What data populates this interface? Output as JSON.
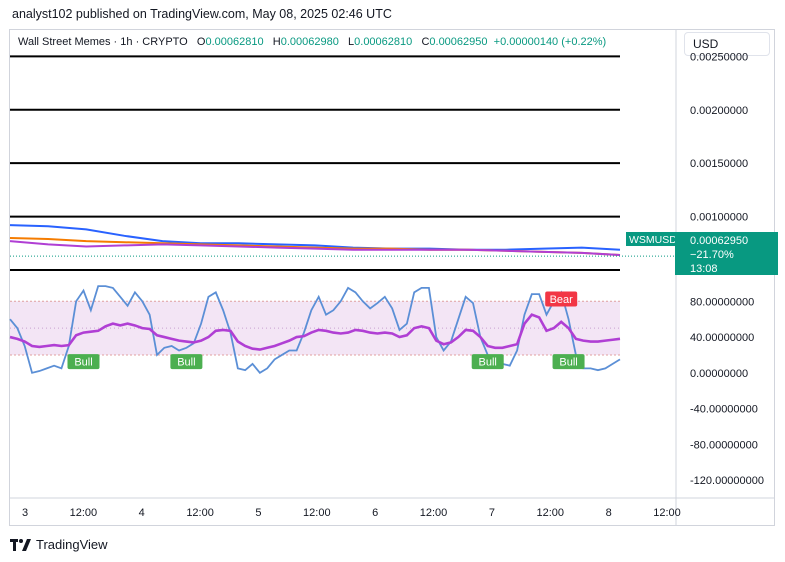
{
  "header": {
    "published_line": "analyst102 published on TradingView.com, May 08, 2025 02:46 UTC"
  },
  "legend": {
    "symbol": "Wall Street Memes · 1h · CRYPTO",
    "o_label": "O",
    "o_value": "0.00062810",
    "h_label": "H",
    "h_value": "0.00062980",
    "l_label": "L",
    "l_value": "0.00062810",
    "c_label": "C",
    "c_value": "0.00062950",
    "change": "+0.00000140 (+0.22%)"
  },
  "currency_button": "USD",
  "price_tag": {
    "symbol": "WSMUSD",
    "price": "0.00062950",
    "change_pct": "−21.70%",
    "countdown": "13:08"
  },
  "footer": {
    "brand": "TradingView"
  },
  "colors": {
    "green": "#089981",
    "price_tag_bg": "#089981",
    "stoch_k": "#2962ff",
    "stoch_d": "#b03fd4",
    "rsi_band": "#f3e5f5",
    "bull": "#4caf50",
    "bear": "#f23645"
  },
  "chart_data": [
    {
      "type": "line",
      "panel": "price",
      "ylim": [
        0.0005,
        0.0027
      ],
      "y_ticks": [
        "0.00250000",
        "0.00200000",
        "0.00150000",
        "0.00100000"
      ],
      "y_tick_values": [
        0.0025,
        0.002,
        0.0015,
        0.001
      ],
      "horizontal_levels": [
        0.0025,
        0.002,
        0.0015,
        0.001,
        0.0005
      ],
      "x_ticks": [
        "3",
        "12:00",
        "4",
        "12:00",
        "5",
        "12:00",
        "6",
        "12:00",
        "7",
        "12:00",
        "8",
        "12:00"
      ],
      "series": [
        {
          "values": [
            0.00092,
            0.00091,
            0.00088,
            0.00082,
            0.00077,
            0.00075,
            0.00075,
            0.00074,
            0.00073,
            0.00071,
            0.0007,
            0.0007,
            0.00069,
            0.00069,
            0.0007,
            0.00071,
            0.00069
          ]
        },
        {
          "values": [
            0.0008,
            0.00079,
            0.00077,
            0.00076,
            0.00075,
            0.00074,
            0.00073,
            0.00072,
            0.00071,
            0.0007,
            0.0007,
            0.00069,
            0.00069,
            0.00068,
            0.00067,
            0.00066,
            0.00064
          ]
        },
        {
          "values": [
            0.00077,
            0.00074,
            0.00072,
            0.00073,
            0.00074,
            0.00073,
            0.00072,
            0.00071,
            0.0007,
            0.00069,
            0.00069,
            0.00069,
            0.00069,
            0.00068,
            0.00067,
            0.00066,
            0.00064
          ]
        }
      ],
      "last_price": 0.0006295
    },
    {
      "type": "line",
      "panel": "oscillator",
      "ylim": [
        -140,
        115
      ],
      "y_ticks": [
        "80.00000000",
        "40.00000000",
        "0.00000000",
        "-40.00000000",
        "-80.00000000",
        "-120.00000000"
      ],
      "y_tick_values": [
        80,
        40,
        0,
        -40,
        -80,
        -120
      ],
      "band": [
        20,
        80
      ],
      "series": [
        {
          "values": [
            60,
            50,
            30,
            0,
            2,
            5,
            8,
            5,
            30,
            80,
            92,
            70,
            97,
            97,
            95,
            85,
            75,
            90,
            80,
            65,
            20,
            28,
            30,
            25,
            28,
            33,
            55,
            85,
            90,
            70,
            45,
            5,
            3,
            10,
            0,
            5,
            15,
            20,
            25,
            25,
            45,
            70,
            85,
            65,
            70,
            80,
            95,
            90,
            80,
            72,
            78,
            85,
            72,
            48,
            55,
            90,
            95,
            95,
            40,
            25,
            35,
            60,
            85,
            78,
            40,
            20,
            15,
            10,
            8,
            25,
            65,
            88,
            88,
            65,
            80,
            90,
            60,
            20,
            5,
            5,
            3,
            5,
            10,
            15
          ]
        },
        {
          "values": [
            40,
            38,
            35,
            30,
            29,
            30,
            31,
            30,
            31,
            42,
            45,
            46,
            47,
            52,
            55,
            53,
            55,
            53,
            50,
            49,
            42,
            40,
            38,
            36,
            35,
            34,
            36,
            40,
            47,
            48,
            47,
            35,
            30,
            27,
            26,
            28,
            30,
            33,
            36,
            40,
            41,
            45,
            48,
            47,
            45,
            44,
            45,
            48,
            47,
            45,
            44,
            45,
            44,
            40,
            42,
            50,
            52,
            50,
            36,
            32,
            34,
            40,
            48,
            47,
            40,
            30,
            28,
            28,
            30,
            32,
            55,
            65,
            62,
            47,
            50,
            57,
            50,
            38,
            36,
            35,
            35,
            36,
            37,
            38
          ]
        }
      ],
      "signals": [
        {
          "label": "Bull",
          "index": 10
        },
        {
          "label": "Bull",
          "index": 24
        },
        {
          "label": "Bull",
          "index": 65
        },
        {
          "label": "Bull",
          "index": 76
        },
        {
          "label": "Bear",
          "index": 75
        }
      ]
    }
  ]
}
